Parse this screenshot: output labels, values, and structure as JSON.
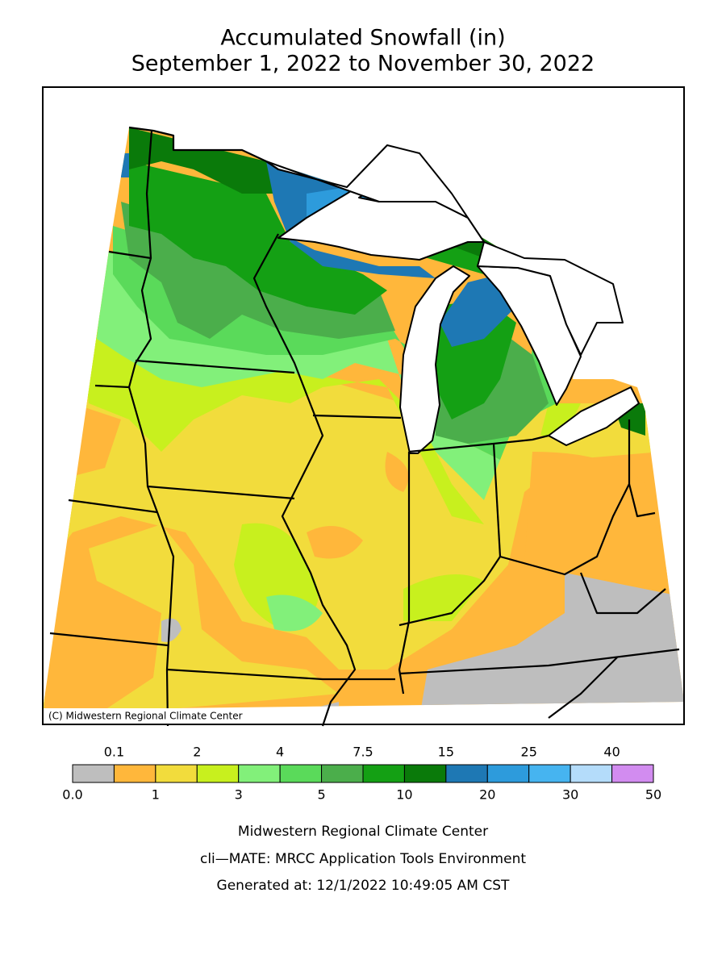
{
  "header": {
    "title": "Accumulated Snowfall (in)",
    "subtitle": "September 1, 2022 to November 30, 2022"
  },
  "map": {
    "credit": "(C) Midwestern Regional Climate Center"
  },
  "legend": {
    "colors": [
      "#bebebe",
      "#ffb73b",
      "#f2dc3c",
      "#c8f01e",
      "#82f07a",
      "#5ada5a",
      "#4bae4b",
      "#14a014",
      "#0a7a0a",
      "#1e78b4",
      "#2d9bdc",
      "#46b4f0",
      "#b4dcfa",
      "#d28cf0"
    ],
    "top_labels": [
      "0.1",
      "2",
      "4",
      "7.5",
      "15",
      "25",
      "40"
    ],
    "bottom_labels": [
      "0.0",
      "1",
      "3",
      "5",
      "10",
      "20",
      "30",
      "50"
    ]
  },
  "footer": {
    "lines": [
      "Midwestern Regional Climate Center",
      "cli—MATE: MRCC Application Tools Environment",
      "Generated at: 12/1/2022 10:49:05 AM CST"
    ]
  }
}
